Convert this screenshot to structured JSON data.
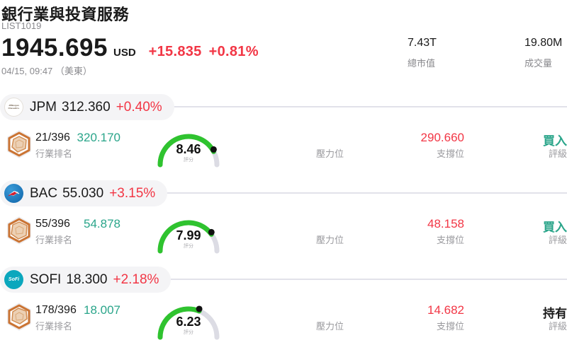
{
  "page": {
    "title": "銀行業與投資服務",
    "list_id": "LIST1019"
  },
  "quote": {
    "price": "1945.695",
    "currency": "USD",
    "change": "+15.835",
    "change_pct": "+0.81%",
    "time": "04/15, 09:47 （美東）",
    "market_cap_value": "7.43T",
    "market_cap_label": "總市值",
    "volume_value": "19.80M",
    "volume_label": "成交量"
  },
  "labels": {
    "rank": "行業排名",
    "score": "評分",
    "resistance": "壓力位",
    "support": "支撐位",
    "rating": "評級"
  },
  "colors": {
    "up_red": "#f23645",
    "teal": "#2aa58a",
    "gauge_green": "#2fc32f",
    "gauge_track": "#dcdce4",
    "gauge_dot": "#111111",
    "hold_black": "#1a1a1a"
  },
  "icons": {
    "jpm_logo": "jpm-logo-icon",
    "bac_logo": "bac-logo-icon",
    "sofi_logo": "sofi-logo-icon",
    "rank_badge": "hexagon-radar-badge-icon",
    "gauge": "score-gauge"
  },
  "rows": [
    {
      "ticker": "JPM",
      "logo_text": "JPMorgan Chase&Co.",
      "price": "312.360",
      "change_pct": "+0.40%",
      "rank": "21/396",
      "score": "8.46",
      "score_value": 8.46,
      "resistance": "320.170",
      "support": "290.660",
      "rating": "買入",
      "rating_color": "#2aa58a"
    },
    {
      "ticker": "BAC",
      "logo_text": "",
      "price": "55.030",
      "change_pct": "+3.15%",
      "rank": "55/396",
      "score": "7.99",
      "score_value": 7.99,
      "resistance": "54.878",
      "support": "48.158",
      "rating": "買入",
      "rating_color": "#2aa58a"
    },
    {
      "ticker": "SOFI",
      "logo_text": "SoFi",
      "price": "18.300",
      "change_pct": "+2.18%",
      "rank": "178/396",
      "score": "6.23",
      "score_value": 6.23,
      "resistance": "18.007",
      "support": "14.682",
      "rating": "持有",
      "rating_color": "#1a1a1a"
    }
  ]
}
